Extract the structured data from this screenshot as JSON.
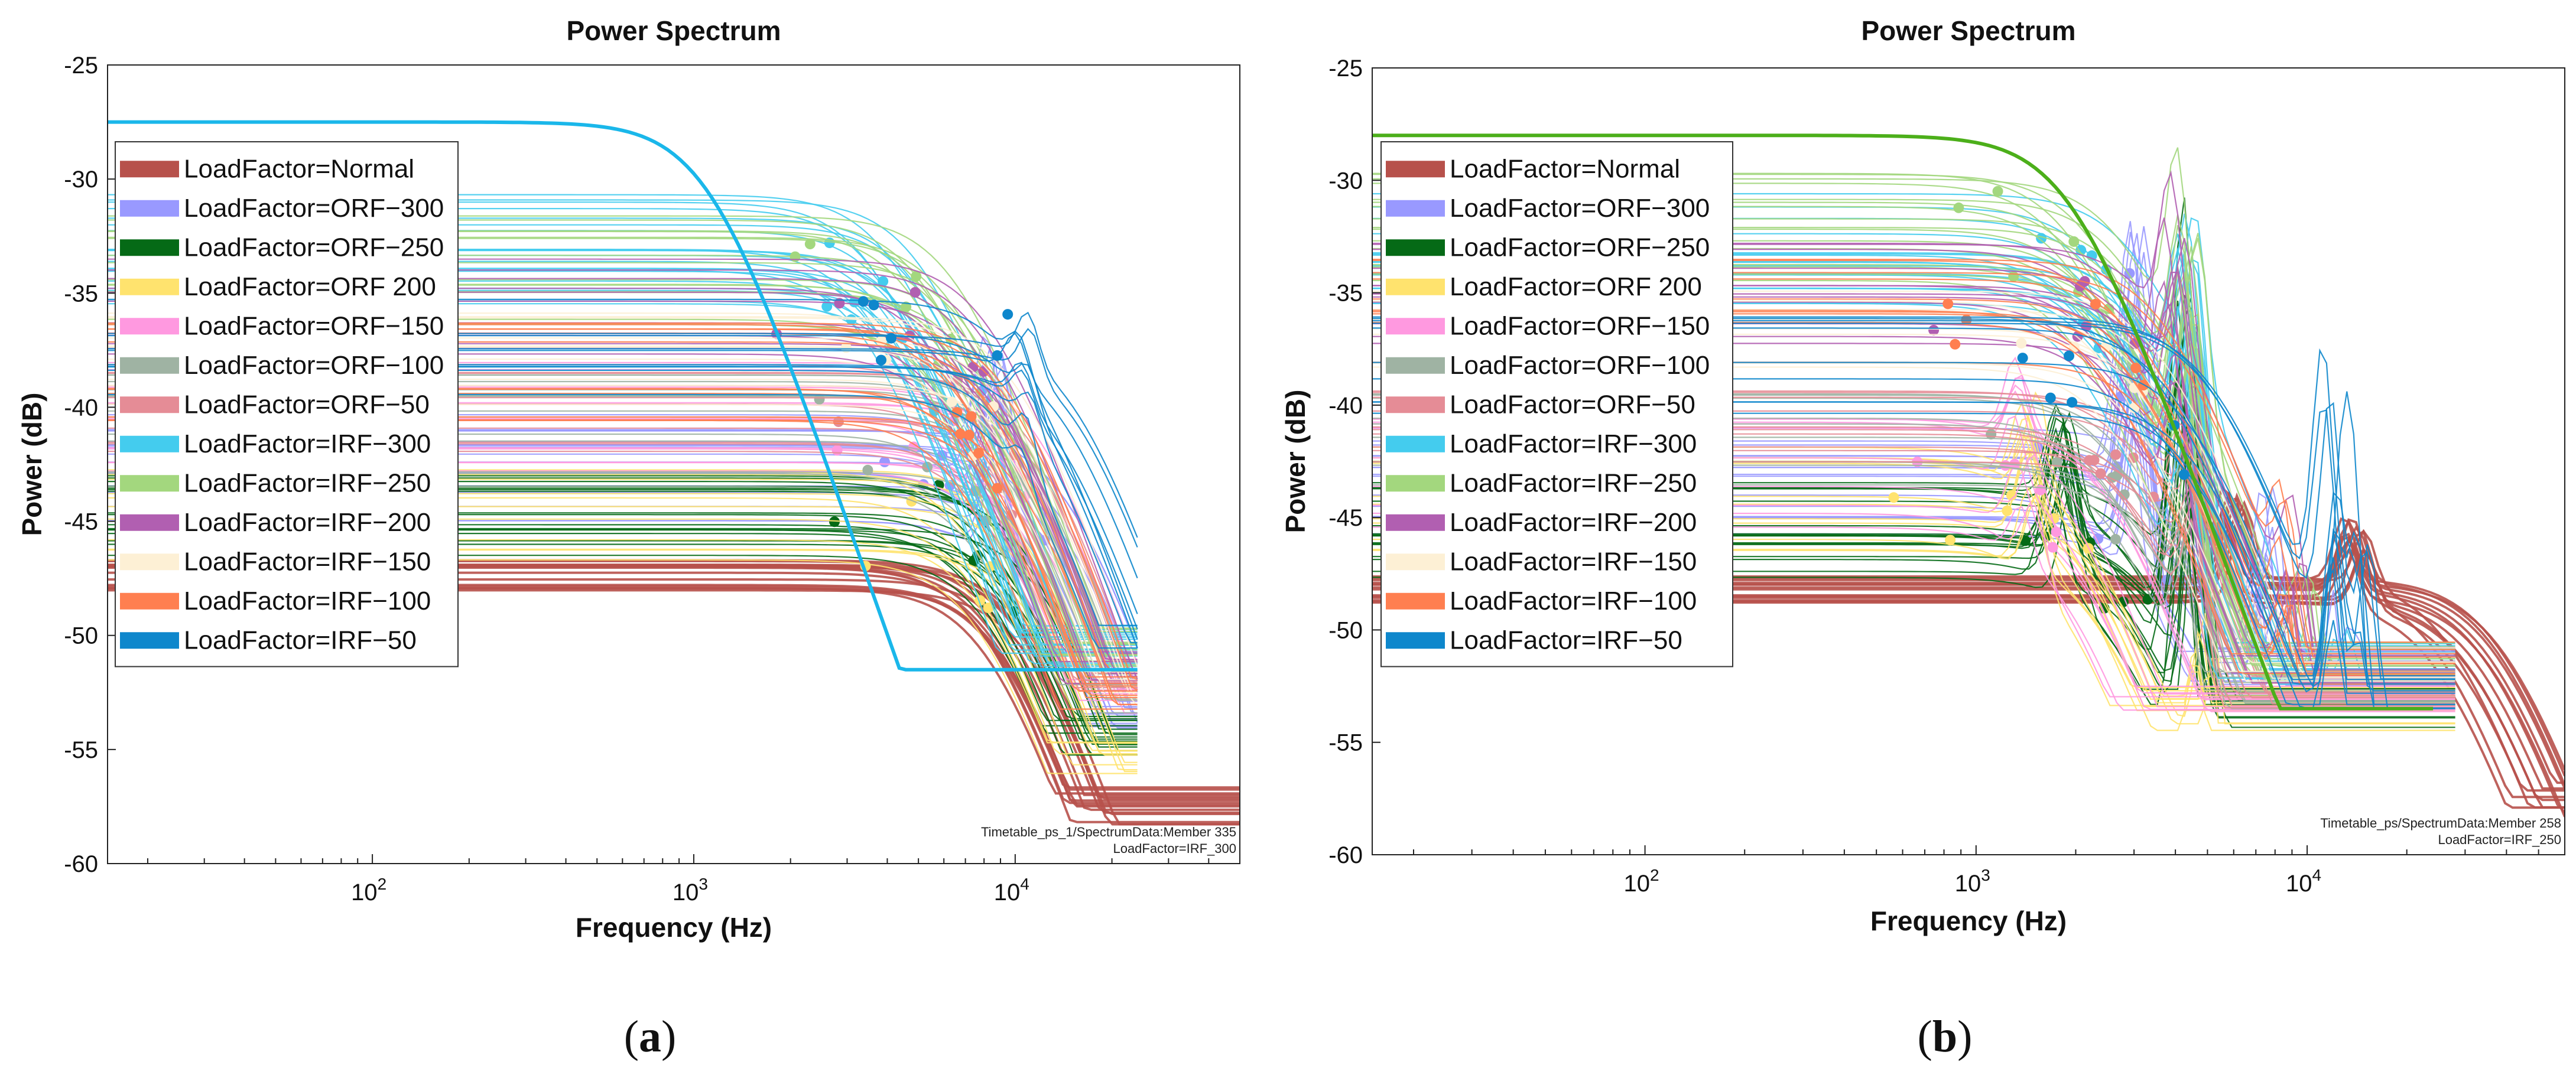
{
  "chart_data": [
    {
      "id": "a",
      "type": "line",
      "title": "Power Spectrum",
      "xlabel": "Frequency (Hz)",
      "ylabel": "Power (dB)",
      "xscale": "log",
      "xlim": [
        15,
        50000
      ],
      "ylim": [
        -60,
        -25
      ],
      "yticks": [
        -25,
        -30,
        -35,
        -40,
        -45,
        -50,
        -55,
        -60
      ],
      "xticks": [
        {
          "value": 100,
          "base": "10",
          "exp": "2"
        },
        {
          "value": 1000,
          "base": "10",
          "exp": "3"
        },
        {
          "value": 10000,
          "base": "10",
          "exp": "4"
        }
      ],
      "legend_position": "upper-left",
      "annotation": [
        "Timetable_ps_1/SpectrumData:Member 335",
        "LoadFactor=IRF_300"
      ],
      "panel_label": "a",
      "series": [
        {
          "name": "LoadFactor=Normal",
          "color": "#b7514b",
          "level": -47.5,
          "fc": 9000,
          "min": -56,
          "resonance": [],
          "count": 16
        },
        {
          "name": "LoadFactor=ORF−300",
          "color": "#9999ff",
          "level": -42.5,
          "fc": 11000,
          "min": -52,
          "resonance": [
            {
              "f": 8500,
              "gain": 5
            }
          ],
          "count": 18
        },
        {
          "name": "LoadFactor=ORF−250",
          "color": "#056a16",
          "level": -44.6,
          "fc": 9500,
          "min": -53,
          "resonance": [],
          "count": 18
        },
        {
          "name": "LoadFactor=ORF  200",
          "color": "#ffe36e",
          "level": -45.2,
          "fc": 8800,
          "min": -54,
          "resonance": [],
          "count": 12
        },
        {
          "name": "LoadFactor=ORF−150",
          "color": "#ff99e0",
          "level": -40.5,
          "fc": 9500,
          "min": -51,
          "resonance": [],
          "count": 12
        },
        {
          "name": "LoadFactor=ORF−100",
          "color": "#9fb3a3",
          "level": -41,
          "fc": 9000,
          "min": -51,
          "resonance": [],
          "count": 12
        },
        {
          "name": "LoadFactor=ORF−50",
          "color": "#e58c96",
          "level": -39.5,
          "fc": 9200,
          "min": -50,
          "resonance": [],
          "count": 12
        },
        {
          "name": "LoadFactor=IRF−300",
          "color": "#44ccee",
          "level": -33,
          "fc": 4000,
          "min": -49,
          "resonance": [],
          "count": 22
        },
        {
          "name": "LoadFactor=IRF−250",
          "color": "#a3d77e",
          "level": -34,
          "fc": 6000,
          "min": -49,
          "resonance": [],
          "count": 16
        },
        {
          "name": "LoadFactor=IRF−200",
          "color": "#b15fb1",
          "level": -36,
          "fc": 7000,
          "min": -50,
          "resonance": [],
          "count": 12
        },
        {
          "name": "LoadFactor=IRF−150",
          "color": "#fdf0d5",
          "level": -38,
          "fc": 8000,
          "min": -51,
          "resonance": [],
          "count": 10
        },
        {
          "name": "LoadFactor=IRF−100",
          "color": "#ff7f50",
          "level": -38.5,
          "fc": 8000,
          "min": -51,
          "resonance": [],
          "count": 12
        },
        {
          "name": "LoadFactor=IRF−50",
          "color": "#0e87cc",
          "level": -37,
          "fc": 12000,
          "min": -49,
          "resonance": [
            {
              "f": 10500,
              "gain": 2
            }
          ],
          "count": 10
        }
      ],
      "highlight": {
        "color": "#1ab7ea",
        "level": -27.5,
        "fc": 1100,
        "min": -50
      }
    },
    {
      "id": "b",
      "type": "line",
      "title": "Power Spectrum",
      "xlabel": "Frequency (Hz)",
      "ylabel": "Power (dB)",
      "xscale": "log",
      "xlim": [
        15,
        60000
      ],
      "ylim": [
        -60,
        -25
      ],
      "yticks": [
        -25,
        -30,
        -35,
        -40,
        -45,
        -50,
        -55,
        -60
      ],
      "xticks": [
        {
          "value": 100,
          "base": "10",
          "exp": "2"
        },
        {
          "value": 1000,
          "base": "10",
          "exp": "3"
        },
        {
          "value": 10000,
          "base": "10",
          "exp": "4"
        }
      ],
      "legend_position": "upper-left",
      "annotation": [
        "Timetable_ps/SpectrumData:Member 258",
        "LoadFactor=IRF_250"
      ],
      "panel_label": "b",
      "series": [
        {
          "name": "LoadFactor=Normal",
          "color": "#b7514b",
          "level": -48,
          "fc": 30000,
          "min": -56,
          "resonance": [
            {
              "f": 6000,
              "gain": 4
            },
            {
              "f": 14000,
              "gain": 3
            }
          ],
          "count": 14
        },
        {
          "name": "LoadFactor=ORF−300",
          "color": "#9999ff",
          "level": -43.5,
          "fc": 3500,
          "min": -50,
          "resonance": [
            {
              "f": 3000,
              "gain": 11
            },
            {
              "f": 7500,
              "gain": 9
            },
            {
              "f": 13000,
              "gain": 12
            }
          ],
          "count": 16
        },
        {
          "name": "LoadFactor=ORF−250",
          "color": "#056a16",
          "level": -45.5,
          "fc": 3000,
          "min": -52,
          "resonance": [
            {
              "f": 1800,
              "gain": 5
            },
            {
              "f": 4400,
              "gain": 16
            },
            {
              "f": 10000,
              "gain": 8
            }
          ],
          "count": 18
        },
        {
          "name": "LoadFactor=ORF  200",
          "color": "#ffe36e",
          "level": -44,
          "fc": 2000,
          "min": -52,
          "resonance": [
            {
              "f": 1500,
              "gain": 4
            },
            {
              "f": 5000,
              "gain": 8
            }
          ],
          "count": 12
        },
        {
          "name": "LoadFactor=ORF−150",
          "color": "#ff99e0",
          "level": -43,
          "fc": 2000,
          "min": -52,
          "resonance": [
            {
              "f": 1400,
              "gain": 3
            }
          ],
          "count": 10
        },
        {
          "name": "LoadFactor=ORF−100",
          "color": "#9fb3a3",
          "level": -42,
          "fc": 3000,
          "min": -51,
          "resonance": [
            {
              "f": 4400,
              "gain": 6
            }
          ],
          "count": 10
        },
        {
          "name": "LoadFactor=ORF−50",
          "color": "#e58c96",
          "level": -41,
          "fc": 3000,
          "min": -51,
          "resonance": [
            {
              "f": 4400,
              "gain": 5
            }
          ],
          "count": 10
        },
        {
          "name": "LoadFactor=IRF−300",
          "color": "#44ccee",
          "level": -33,
          "fc": 2500,
          "min": -50,
          "resonance": [
            {
              "f": 4400,
              "gain": 9
            },
            {
              "f": 13000,
              "gain": 7
            }
          ],
          "count": 18
        },
        {
          "name": "LoadFactor=IRF−250",
          "color": "#a3d77e",
          "level": -32,
          "fc": 2300,
          "min": -50,
          "resonance": [
            {
              "f": 4400,
              "gain": 10
            },
            {
              "f": 10000,
              "gain": 6
            }
          ],
          "count": 16
        },
        {
          "name": "LoadFactor=IRF−200",
          "color": "#b15fb1",
          "level": -35,
          "fc": 2800,
          "min": -50,
          "resonance": [
            {
              "f": 4000,
              "gain": 7
            },
            {
              "f": 9500,
              "gain": 6
            }
          ],
          "count": 12
        },
        {
          "name": "LoadFactor=IRF−150",
          "color": "#fdf0d5",
          "level": -37,
          "fc": 3000,
          "min": -50,
          "resonance": [],
          "count": 8
        },
        {
          "name": "LoadFactor=IRF−100",
          "color": "#ff7f50",
          "level": -36,
          "fc": 3000,
          "min": -50,
          "resonance": [
            {
              "f": 9000,
              "gain": 5
            },
            {
              "f": 14000,
              "gain": 4
            }
          ],
          "count": 10
        },
        {
          "name": "LoadFactor=IRF−50",
          "color": "#0e87cc",
          "level": -38,
          "fc": 4000,
          "min": -51,
          "resonance": [
            {
              "f": 12000,
              "gain": 12
            },
            {
              "f": 15000,
              "gain": 10
            }
          ],
          "count": 10
        }
      ],
      "highlight": {
        "color": "#4caf1a",
        "level": -28,
        "fc": 1900,
        "min": -52
      }
    }
  ]
}
